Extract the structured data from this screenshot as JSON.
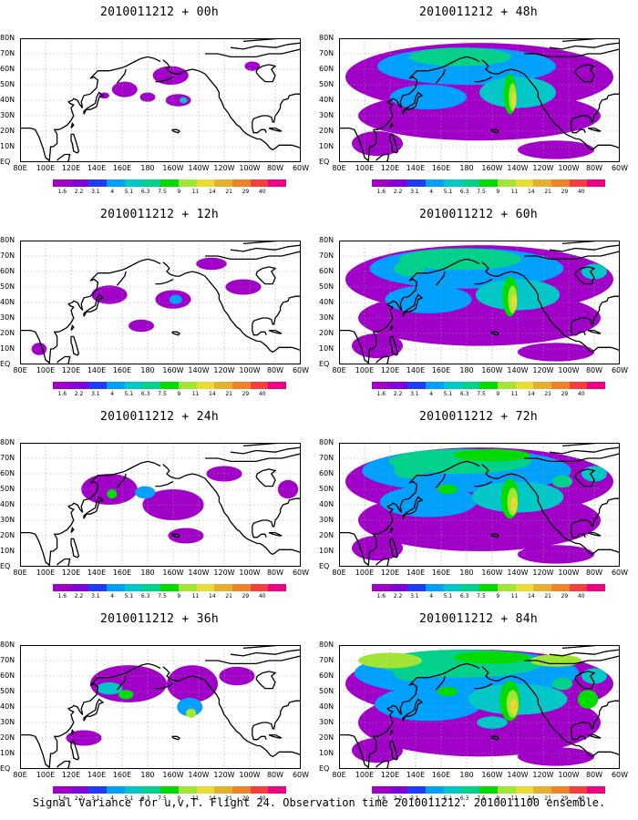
{
  "panels": [
    {
      "title": "2010011212 + 00h",
      "level": 0
    },
    {
      "title": "2010011212 + 48h",
      "level": 4
    },
    {
      "title": "2010011212 + 12h",
      "level": 1
    },
    {
      "title": "2010011212 + 60h",
      "level": 5
    },
    {
      "title": "2010011212 + 24h",
      "level": 2
    },
    {
      "title": "2010011212 + 72h",
      "level": 6
    },
    {
      "title": "2010011212 + 36h",
      "level": 3
    },
    {
      "title": "2010011212 + 84h",
      "level": 7
    }
  ],
  "lat_labels": [
    "80N",
    "70N",
    "60N",
    "50N",
    "40N",
    "30N",
    "20N",
    "10N",
    "EQ"
  ],
  "lon_labels": [
    "80E",
    "100E",
    "120E",
    "140E",
    "160E",
    "180",
    "160W",
    "140W",
    "120W",
    "100W",
    "80W",
    "60W"
  ],
  "colorbar": {
    "labels": [
      "1.6",
      "2.2",
      "3.1",
      "4",
      "5.1",
      "6.3",
      "7.5",
      "9",
      "11",
      "14",
      "21",
      "29",
      "40"
    ],
    "colors": [
      "#a000c8",
      "#8200dc",
      "#1e3cff",
      "#00a0ff",
      "#00c8c8",
      "#00d28c",
      "#00dc00",
      "#a0e632",
      "#e6dc32",
      "#e6af2d",
      "#f08228",
      "#fa3c3c",
      "#f00082"
    ]
  },
  "caption": "Signal Variance for u,v,T. Flight 24. Observation time 2010011212. 2010011100 ensemble."
}
